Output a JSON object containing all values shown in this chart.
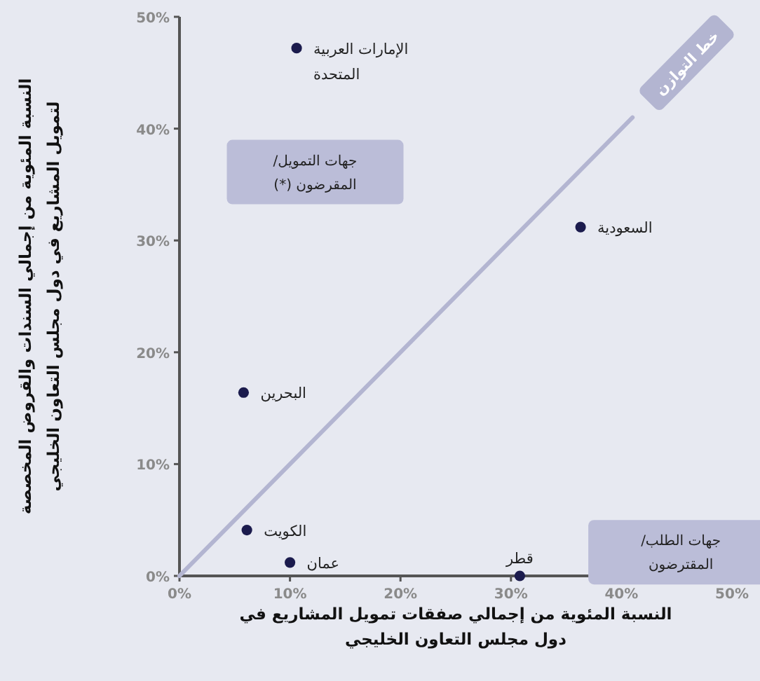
{
  "chart_data": {
    "type": "scatter",
    "xlabel": "النسبة المئوية من إجمالي صفقات تمويل المشاريع في\nدول مجلس التعاون الخليجي",
    "ylabel": "النسبة المئوية من إجمالي السندات والقروض المخصصة\nلتمويل المشاريع في دول مجلس التعاون الخليجي",
    "xlim": [
      0,
      50
    ],
    "ylim": [
      0,
      50
    ],
    "xticks": [
      {
        "value": 0,
        "label": "0%"
      },
      {
        "value": 10,
        "label": "10%"
      },
      {
        "value": 20,
        "label": "20%"
      },
      {
        "value": 30,
        "label": "30%"
      },
      {
        "value": 40,
        "label": "40%"
      },
      {
        "value": 50,
        "label": "50%"
      }
    ],
    "yticks": [
      {
        "value": 0,
        "label": "0%"
      },
      {
        "value": 10,
        "label": "10%"
      },
      {
        "value": 20,
        "label": "20%"
      },
      {
        "value": 30,
        "label": "30%"
      },
      {
        "value": 40,
        "label": "40%"
      },
      {
        "value": 50,
        "label": "50%"
      }
    ],
    "grid": false,
    "series": [
      {
        "type": "line",
        "name": "خط التوازن",
        "color": "#b3b5d1",
        "marker": "none",
        "x": [
          0,
          41
        ],
        "values": [
          0,
          41
        ]
      },
      {
        "marker": "circle",
        "color": "#1b1b4d",
        "x": [
          10.6,
          36.3,
          5.8,
          6.1,
          10.0,
          30.8
        ],
        "values": [
          47.2,
          31.2,
          16.4,
          4.1,
          1.2,
          0
        ]
      }
    ],
    "annotations": [
      {
        "text": "الإمارات العربية\nالمتحدة",
        "x": 10.6,
        "y": 47.2
      },
      {
        "text": "السعودية",
        "x": 36.3,
        "y": 31.2
      },
      {
        "text": "البحرين",
        "x": 5.8,
        "y": 16.4
      },
      {
        "text": "الكويت",
        "x": 6.1,
        "y": 4.1
      },
      {
        "text": "عمان",
        "x": 10.0,
        "y": 1.2
      },
      {
        "text": "قطر",
        "x": 30.8,
        "y": 0
      },
      "جهات التمويل/\nالمقرضون (*)",
      "جهات الطلب/\nالمقترضون"
    ]
  }
}
